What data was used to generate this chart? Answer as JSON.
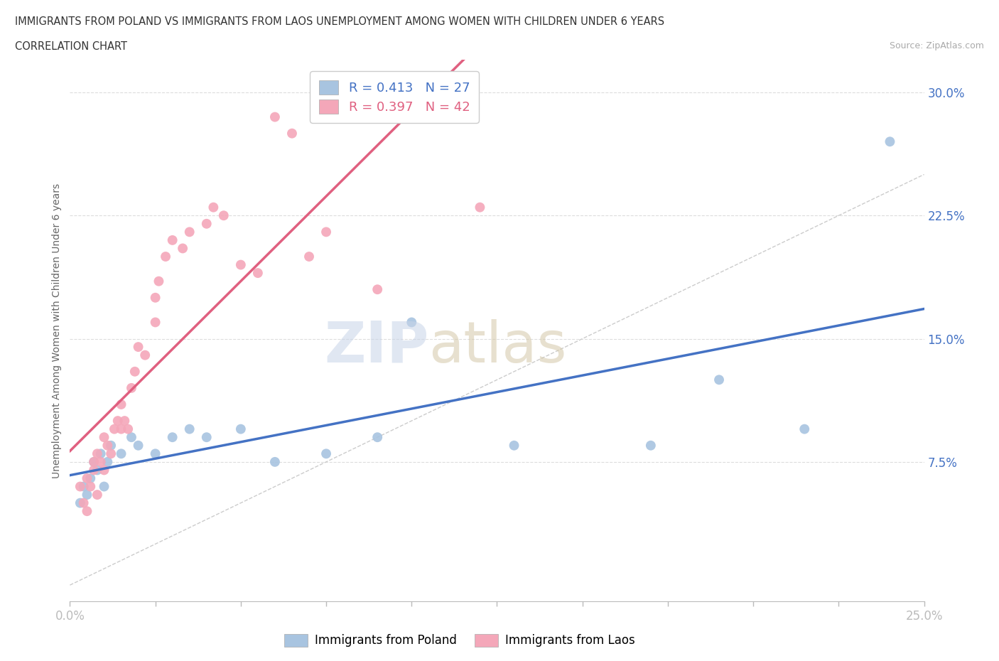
{
  "title_line1": "IMMIGRANTS FROM POLAND VS IMMIGRANTS FROM LAOS UNEMPLOYMENT AMONG WOMEN WITH CHILDREN UNDER 6 YEARS",
  "title_line2": "CORRELATION CHART",
  "source_text": "Source: ZipAtlas.com",
  "ylabel": "Unemployment Among Women with Children Under 6 years",
  "xlim": [
    0.0,
    0.25
  ],
  "ylim": [
    -0.01,
    0.32
  ],
  "yticks": [
    0.0,
    0.075,
    0.15,
    0.225,
    0.3
  ],
  "ytick_labels": [
    "",
    "7.5%",
    "15.0%",
    "22.5%",
    "30.0%"
  ],
  "xticks": [
    0.0,
    0.025,
    0.05,
    0.075,
    0.1,
    0.125,
    0.15,
    0.175,
    0.2,
    0.225,
    0.25
  ],
  "xtick_labels": [
    "0.0%",
    "",
    "",
    "",
    "",
    "",
    "",
    "",
    "",
    "",
    "25.0%"
  ],
  "legend_label1": "Immigrants from Poland",
  "legend_label2": "Immigrants from Laos",
  "R1": 0.413,
  "N1": 27,
  "R2": 0.397,
  "N2": 42,
  "color_poland": "#a8c4e0",
  "color_laos": "#f4a7b9",
  "line_color_poland": "#4472c4",
  "line_color_laos": "#e06080",
  "poland_x": [
    0.003,
    0.004,
    0.005,
    0.006,
    0.007,
    0.008,
    0.009,
    0.01,
    0.011,
    0.012,
    0.015,
    0.018,
    0.02,
    0.025,
    0.03,
    0.035,
    0.04,
    0.05,
    0.06,
    0.075,
    0.09,
    0.1,
    0.13,
    0.17,
    0.19,
    0.215,
    0.24
  ],
  "poland_y": [
    0.05,
    0.06,
    0.055,
    0.065,
    0.075,
    0.07,
    0.08,
    0.06,
    0.075,
    0.085,
    0.08,
    0.09,
    0.085,
    0.08,
    0.09,
    0.095,
    0.09,
    0.095,
    0.075,
    0.08,
    0.09,
    0.16,
    0.085,
    0.085,
    0.125,
    0.095,
    0.27
  ],
  "laos_x": [
    0.003,
    0.004,
    0.005,
    0.005,
    0.006,
    0.007,
    0.007,
    0.008,
    0.008,
    0.009,
    0.01,
    0.01,
    0.011,
    0.012,
    0.013,
    0.014,
    0.015,
    0.015,
    0.016,
    0.017,
    0.018,
    0.019,
    0.02,
    0.022,
    0.025,
    0.025,
    0.026,
    0.028,
    0.03,
    0.033,
    0.035,
    0.04,
    0.042,
    0.045,
    0.05,
    0.055,
    0.06,
    0.065,
    0.07,
    0.075,
    0.09,
    0.12
  ],
  "laos_y": [
    0.06,
    0.05,
    0.045,
    0.065,
    0.06,
    0.07,
    0.075,
    0.055,
    0.08,
    0.075,
    0.07,
    0.09,
    0.085,
    0.08,
    0.095,
    0.1,
    0.095,
    0.11,
    0.1,
    0.095,
    0.12,
    0.13,
    0.145,
    0.14,
    0.16,
    0.175,
    0.185,
    0.2,
    0.21,
    0.205,
    0.215,
    0.22,
    0.23,
    0.225,
    0.195,
    0.19,
    0.285,
    0.275,
    0.2,
    0.215,
    0.18,
    0.23
  ],
  "poland_line_x": [
    0.0,
    0.25
  ],
  "laos_line_x": [
    0.0,
    0.125
  ]
}
